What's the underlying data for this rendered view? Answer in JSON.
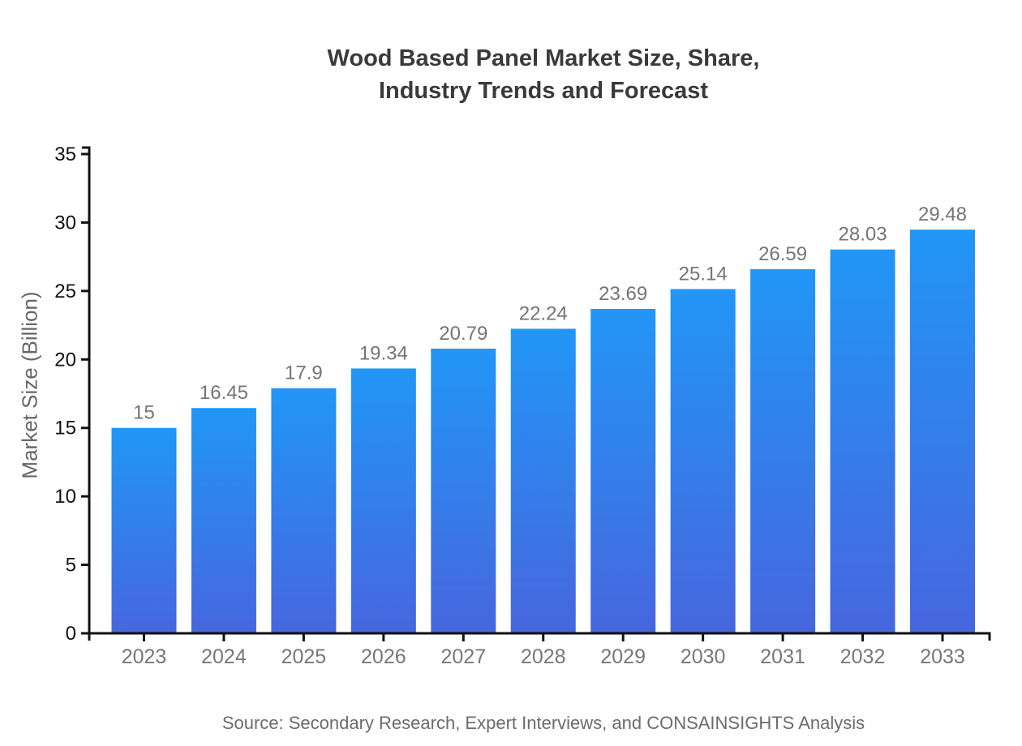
{
  "title": {
    "line1": "Wood Based Panel Market Size, Share,",
    "line2": "Industry Trends and Forecast"
  },
  "source": "Source: Secondary Research, Expert Interviews, and CONSAINSIGHTS Analysis",
  "chart_data": {
    "type": "bar",
    "title": "Wood Based Panel Market Size, Share, Industry Trends and Forecast",
    "categories": [
      "2023",
      "2024",
      "2025",
      "2026",
      "2027",
      "2028",
      "2029",
      "2030",
      "2031",
      "2032",
      "2033"
    ],
    "values": [
      15,
      16.45,
      17.9,
      19.34,
      20.79,
      22.24,
      23.69,
      25.14,
      26.59,
      28.03,
      29.48
    ],
    "value_labels": [
      "15",
      "16.45",
      "17.9",
      "19.34",
      "20.79",
      "22.24",
      "23.69",
      "25.14",
      "26.59",
      "28.03",
      "29.48"
    ],
    "xlabel": "",
    "ylabel": "Market Size (Billion)",
    "ylim": [
      0,
      35
    ],
    "y_ticks": [
      0,
      5,
      10,
      15,
      20,
      25,
      30,
      35
    ],
    "grid": false,
    "legend": false,
    "colors": {
      "bar_gradient_top": "#2196f6",
      "bar_gradient_bottom": "#4766de",
      "axis": "#111111",
      "y_tick_label": "#111111",
      "x_tick_label": "#777777",
      "value_label": "#757575",
      "title": "#3a3a3a",
      "ylabel": "#666666",
      "source": "#6b6b6b"
    }
  }
}
